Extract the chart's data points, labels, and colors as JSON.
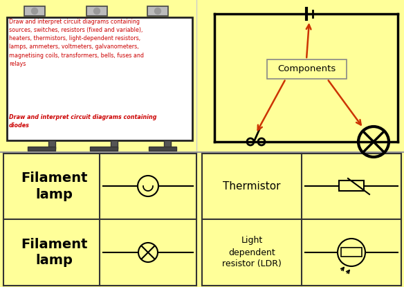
{
  "bg_color": "#FFFF99",
  "billboard_bg": "#FFFFFF",
  "text_red": "#CC0000",
  "billboard_text1": "Draw and interpret circuit diagrams containing\nsources, switches, resistors (fixed and variable),\nheaters, thermistors, light-dependent resistors,\nlamps, ammeters, voltmeters, galvanometers,\nmagnetising coils, transformers, bells, fuses and\nrelays",
  "billboard_text2": "Draw and interpret circuit diagrams containing\ndiodes",
  "components_label": "Components"
}
